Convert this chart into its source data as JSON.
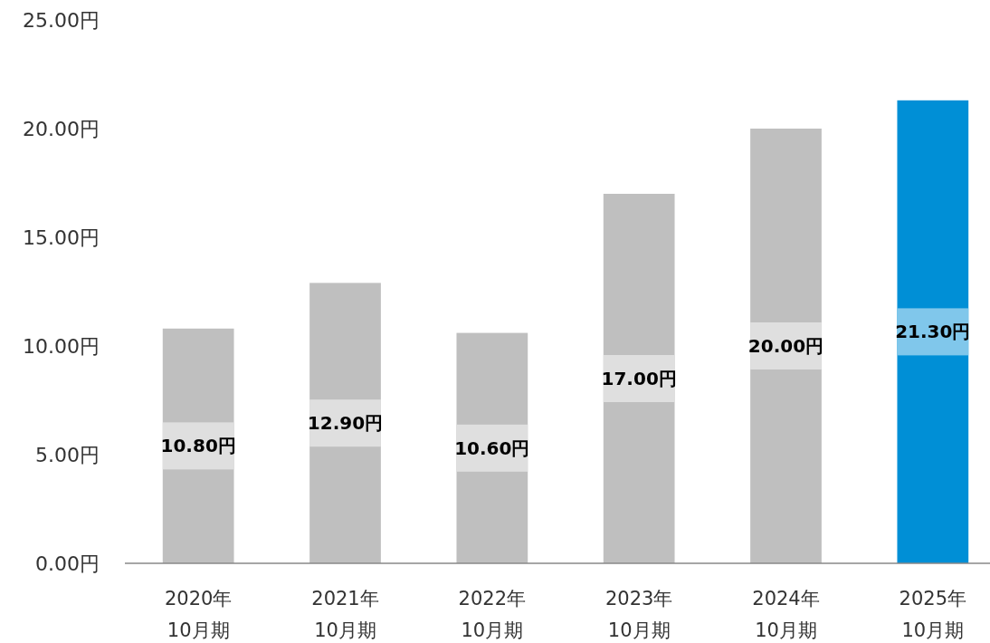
{
  "chart_data": {
    "type": "bar",
    "categories": [
      "2020年\n10月期",
      "2021年\n10月期",
      "2022年\n10月期",
      "2023年\n10月期",
      "2024年\n10月期",
      "2025年\n10月期"
    ],
    "values": [
      10.8,
      12.9,
      10.6,
      17.0,
      20.0,
      21.3
    ],
    "colors": [
      "#bfbfbf",
      "#bfbfbf",
      "#bfbfbf",
      "#bfbfbf",
      "#bfbfbf",
      "#008fd6"
    ],
    "value_labels": [
      "10.80円",
      "12.90円",
      "10.60円",
      "17.00円",
      "20.00円",
      "21.30円"
    ],
    "ylim": [
      0,
      25
    ],
    "yticks": [
      {
        "value": 0,
        "label": "0.00円"
      },
      {
        "value": 5,
        "label": "5.00円"
      },
      {
        "value": 10,
        "label": "10.00円"
      },
      {
        "value": 15,
        "label": "15.00円"
      },
      {
        "value": 20,
        "label": "20.00円"
      },
      {
        "value": 25,
        "label": "25.00円"
      }
    ],
    "grid": false
  }
}
